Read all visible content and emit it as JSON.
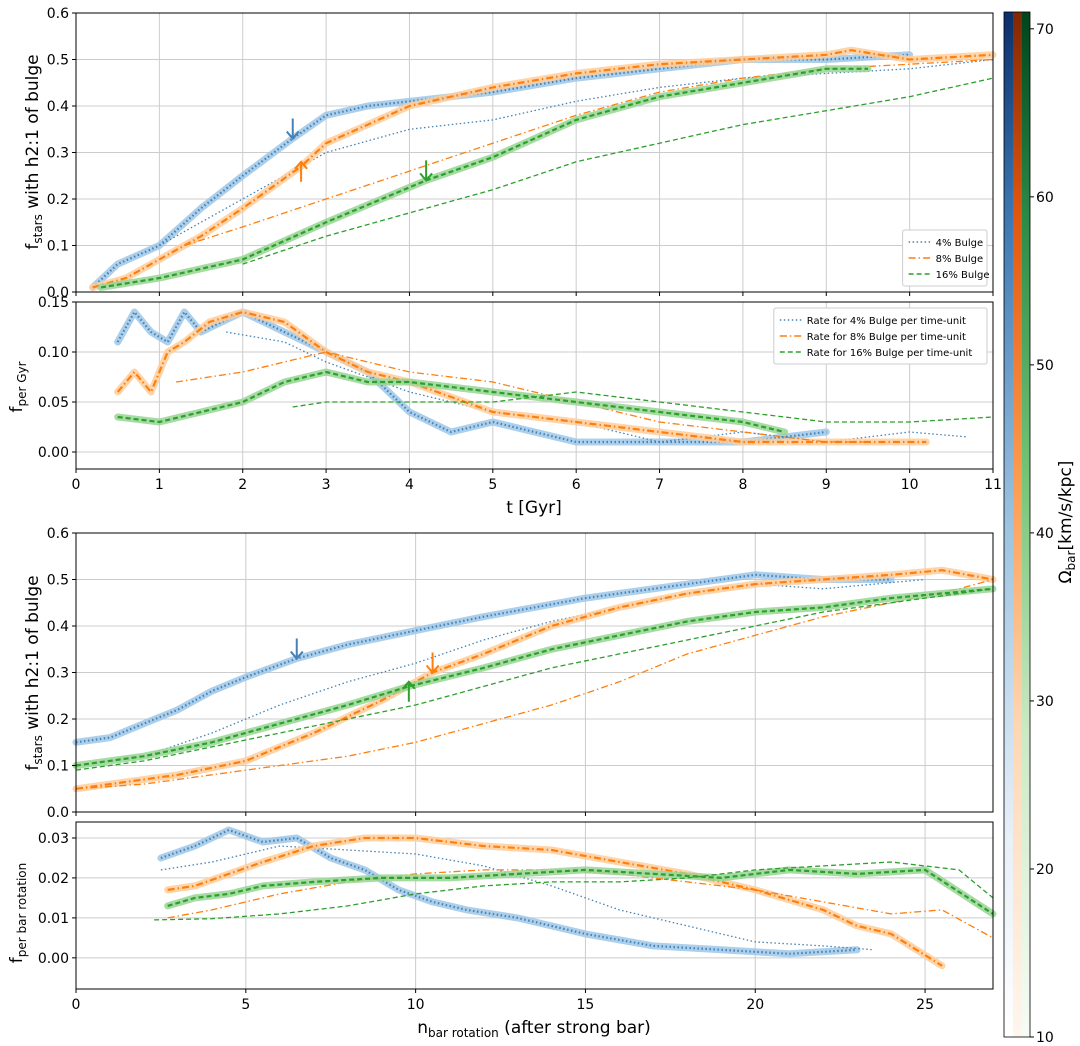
{
  "colors": {
    "blue": "#4682b4",
    "orange": "#ff7f0e",
    "green": "#2ca02c",
    "grid": "#cccccc",
    "axis": "#000000"
  },
  "chart_data": [
    {
      "type": "line",
      "panel": "fraction-vs-time",
      "ylabel_main": "f",
      "ylabel_sub": "stars",
      "ylabel_rest": " with h2:1 of bulge",
      "xlim": [
        0,
        11
      ],
      "ylim": [
        0.0,
        0.6
      ],
      "xticks": [
        0,
        1,
        2,
        3,
        4,
        5,
        6,
        7,
        8,
        9,
        10,
        11
      ],
      "yticks": [
        "0.0",
        "0.1",
        "0.2",
        "0.3",
        "0.4",
        "0.5",
        "0.6"
      ],
      "legend": [
        "4% Bulge",
        "8% Bulge",
        "16% Bulge"
      ],
      "legend_position": "lower-right",
      "series": [
        {
          "name": "4% Bulge (run A)",
          "color": "blue",
          "dash": "dot",
          "highlight": true,
          "x": [
            0.2,
            0.5,
            1.0,
            1.5,
            2.0,
            2.6,
            3.0,
            3.5,
            4.0,
            4.5,
            5.0,
            6.0,
            7.0,
            8.0,
            9.0,
            10.0
          ],
          "y": [
            0.01,
            0.06,
            0.1,
            0.18,
            0.25,
            0.33,
            0.38,
            0.4,
            0.41,
            0.42,
            0.43,
            0.46,
            0.48,
            0.5,
            0.5,
            0.51
          ]
        },
        {
          "name": "4% Bulge (run B)",
          "color": "blue",
          "dash": "dot",
          "highlight": false,
          "x": [
            1.0,
            2.0,
            2.6,
            3.0,
            4.0,
            5.0,
            6.0,
            7.0,
            8.0,
            9.0,
            10.0,
            11.0
          ],
          "y": [
            0.1,
            0.2,
            0.26,
            0.3,
            0.35,
            0.37,
            0.41,
            0.44,
            0.46,
            0.47,
            0.48,
            0.5
          ]
        },
        {
          "name": "8% Bulge (run A)",
          "color": "orange",
          "dash": "dashdot",
          "highlight": true,
          "x": [
            0.2,
            0.6,
            1.0,
            1.5,
            2.0,
            2.7,
            3.0,
            4.0,
            5.0,
            6.0,
            7.0,
            8.0,
            9.0,
            9.3,
            10.0,
            11.0
          ],
          "y": [
            0.01,
            0.03,
            0.07,
            0.12,
            0.18,
            0.27,
            0.32,
            0.4,
            0.44,
            0.47,
            0.49,
            0.5,
            0.51,
            0.52,
            0.5,
            0.51
          ]
        },
        {
          "name": "8% Bulge (run B)",
          "color": "orange",
          "dash": "dashdot",
          "highlight": false,
          "x": [
            1.3,
            2.0,
            3.0,
            4.0,
            5.0,
            6.0,
            7.0,
            8.0,
            9.0,
            10.0,
            11.0
          ],
          "y": [
            0.1,
            0.14,
            0.2,
            0.26,
            0.32,
            0.38,
            0.43,
            0.46,
            0.48,
            0.49,
            0.5
          ]
        },
        {
          "name": "16% Bulge (run A)",
          "color": "green",
          "dash": "dash",
          "highlight": true,
          "x": [
            0.3,
            1.0,
            2.0,
            3.0,
            4.2,
            5.0,
            6.0,
            7.0,
            8.0,
            9.0,
            9.5
          ],
          "y": [
            0.01,
            0.03,
            0.07,
            0.15,
            0.24,
            0.29,
            0.37,
            0.42,
            0.45,
            0.48,
            0.48
          ]
        },
        {
          "name": "16% Bulge (run B)",
          "color": "green",
          "dash": "dash",
          "highlight": false,
          "x": [
            2.0,
            3.0,
            4.0,
            5.0,
            6.0,
            7.0,
            8.0,
            9.0,
            10.0,
            11.0
          ],
          "y": [
            0.06,
            0.12,
            0.17,
            0.22,
            0.28,
            0.32,
            0.36,
            0.39,
            0.42,
            0.46
          ]
        }
      ],
      "annotations": [
        {
          "color": "blue",
          "direction": "down",
          "x": 2.6,
          "y": 0.33
        },
        {
          "color": "orange",
          "direction": "up",
          "x": 2.7,
          "y": 0.28
        },
        {
          "color": "green",
          "direction": "down",
          "x": 4.2,
          "y": 0.24
        }
      ]
    },
    {
      "type": "line",
      "panel": "rate-vs-time",
      "ylabel_main": "f",
      "ylabel_sub": "per Gyr",
      "xlabel": "t [Gyr]",
      "xlim": [
        0,
        11
      ],
      "ylim": [
        -0.017,
        0.15
      ],
      "xticks": [
        0,
        1,
        2,
        3,
        4,
        5,
        6,
        7,
        8,
        9,
        10,
        11
      ],
      "yticks": [
        "0.00",
        "0.05",
        "0.10",
        "0.15"
      ],
      "legend": [
        "Rate for 4% Bulge per time-unit",
        "Rate for 8% Bulge per time-unit",
        "Rate for 16% Bulge per time-unit"
      ],
      "legend_position": "upper-right",
      "series": [
        {
          "name": "4% rate A",
          "color": "blue",
          "dash": "dot",
          "highlight": true,
          "x": [
            0.5,
            0.7,
            0.9,
            1.1,
            1.3,
            1.5,
            2.0,
            2.5,
            3.0,
            3.5,
            4.0,
            4.5,
            5.0,
            6.0,
            7.0,
            8.0,
            9.0
          ],
          "y": [
            0.11,
            0.14,
            0.12,
            0.11,
            0.14,
            0.12,
            0.14,
            0.12,
            0.1,
            0.08,
            0.04,
            0.02,
            0.03,
            0.01,
            0.01,
            0.01,
            0.02
          ]
        },
        {
          "name": "4% rate B",
          "color": "blue",
          "dash": "dot",
          "highlight": false,
          "x": [
            1.8,
            2.5,
            3.0,
            4.0,
            5.0,
            6.0,
            7.0,
            8.0,
            9.0,
            10.0,
            10.7
          ],
          "y": [
            0.12,
            0.11,
            0.09,
            0.06,
            0.04,
            0.03,
            0.01,
            0.02,
            0.01,
            0.02,
            0.015
          ]
        },
        {
          "name": "8% rate A",
          "color": "orange",
          "dash": "dashdot",
          "highlight": true,
          "x": [
            0.5,
            0.7,
            0.9,
            1.1,
            1.3,
            1.6,
            2.0,
            2.5,
            3.0,
            3.5,
            4.0,
            5.0,
            6.0,
            7.0,
            8.0,
            9.0,
            10.2
          ],
          "y": [
            0.06,
            0.08,
            0.06,
            0.1,
            0.11,
            0.13,
            0.14,
            0.13,
            0.1,
            0.08,
            0.07,
            0.04,
            0.03,
            0.02,
            0.01,
            0.01,
            0.01
          ]
        },
        {
          "name": "8% rate B",
          "color": "orange",
          "dash": "dashdot",
          "highlight": false,
          "x": [
            1.2,
            2.0,
            2.5,
            3.0,
            4.0,
            5.0,
            6.0,
            7.0,
            8.0,
            9.0,
            9.5
          ],
          "y": [
            0.07,
            0.08,
            0.09,
            0.1,
            0.08,
            0.07,
            0.05,
            0.03,
            0.02,
            0.01,
            0.01
          ]
        },
        {
          "name": "16% rate A",
          "color": "green",
          "dash": "dash",
          "highlight": true,
          "x": [
            0.5,
            1.0,
            1.5,
            2.0,
            2.5,
            3.0,
            3.5,
            4.0,
            5.0,
            6.0,
            7.0,
            8.0,
            8.5
          ],
          "y": [
            0.035,
            0.03,
            0.04,
            0.05,
            0.07,
            0.08,
            0.07,
            0.07,
            0.06,
            0.05,
            0.04,
            0.03,
            0.02
          ]
        },
        {
          "name": "16% rate B",
          "color": "green",
          "dash": "dash",
          "highlight": false,
          "x": [
            2.6,
            3.0,
            4.0,
            5.0,
            6.0,
            7.0,
            8.0,
            9.0,
            10.0,
            11.0
          ],
          "y": [
            0.045,
            0.05,
            0.05,
            0.05,
            0.06,
            0.05,
            0.04,
            0.03,
            0.03,
            0.035
          ]
        }
      ]
    },
    {
      "type": "line",
      "panel": "fraction-vs-rotations",
      "ylabel_main": "f",
      "ylabel_sub": "stars",
      "ylabel_rest": " with h2:1 of bulge",
      "xlim": [
        0,
        27
      ],
      "ylim": [
        0.0,
        0.6
      ],
      "xticks": [
        0,
        5,
        10,
        15,
        20,
        25
      ],
      "yticks": [
        "0.0",
        "0.1",
        "0.2",
        "0.3",
        "0.4",
        "0.5",
        "0.6"
      ],
      "series": [
        {
          "name": "4% A",
          "color": "blue",
          "dash": "dot",
          "highlight": true,
          "x": [
            0,
            1,
            2,
            3,
            4,
            5,
            6.5,
            8,
            10,
            12,
            15,
            18,
            20,
            22,
            24
          ],
          "y": [
            0.15,
            0.16,
            0.19,
            0.22,
            0.26,
            0.29,
            0.33,
            0.36,
            0.39,
            0.42,
            0.46,
            0.49,
            0.51,
            0.5,
            0.5
          ]
        },
        {
          "name": "4% B",
          "color": "blue",
          "dash": "dot",
          "highlight": false,
          "x": [
            0,
            2,
            4,
            6,
            8,
            10,
            12,
            14,
            16,
            18,
            20,
            22,
            25
          ],
          "y": [
            0.1,
            0.12,
            0.17,
            0.23,
            0.28,
            0.32,
            0.37,
            0.41,
            0.44,
            0.47,
            0.49,
            0.48,
            0.5
          ]
        },
        {
          "name": "8% A",
          "color": "orange",
          "dash": "dashdot",
          "highlight": true,
          "x": [
            0,
            1,
            3,
            5,
            7,
            9,
            10.5,
            12,
            14,
            16,
            18,
            20,
            22,
            24,
            25.5,
            27
          ],
          "y": [
            0.05,
            0.06,
            0.08,
            0.11,
            0.17,
            0.24,
            0.3,
            0.34,
            0.4,
            0.44,
            0.47,
            0.49,
            0.5,
            0.51,
            0.52,
            0.5
          ]
        },
        {
          "name": "8% B",
          "color": "orange",
          "dash": "dashdot",
          "highlight": false,
          "x": [
            0,
            2,
            4,
            6,
            8,
            10,
            12,
            14,
            16,
            18,
            20,
            22,
            24,
            26,
            27
          ],
          "y": [
            0.05,
            0.06,
            0.08,
            0.1,
            0.12,
            0.15,
            0.19,
            0.23,
            0.28,
            0.34,
            0.38,
            0.42,
            0.45,
            0.48,
            0.5
          ]
        },
        {
          "name": "16% A",
          "color": "green",
          "dash": "dash",
          "highlight": true,
          "x": [
            0,
            2,
            4,
            6,
            8,
            9.8,
            12,
            14,
            16,
            18,
            20,
            22,
            24,
            27
          ],
          "y": [
            0.1,
            0.12,
            0.15,
            0.19,
            0.23,
            0.27,
            0.31,
            0.35,
            0.38,
            0.41,
            0.43,
            0.44,
            0.46,
            0.48
          ]
        },
        {
          "name": "16% B",
          "color": "green",
          "dash": "dash",
          "highlight": false,
          "x": [
            0,
            2,
            4,
            6,
            8,
            10,
            12,
            14,
            16,
            18,
            20,
            22,
            24,
            27
          ],
          "y": [
            0.09,
            0.11,
            0.14,
            0.17,
            0.2,
            0.23,
            0.27,
            0.31,
            0.34,
            0.37,
            0.4,
            0.43,
            0.45,
            0.48
          ]
        }
      ],
      "annotations": [
        {
          "color": "blue",
          "direction": "down",
          "x": 6.5,
          "y": 0.33
        },
        {
          "color": "orange",
          "direction": "down",
          "x": 10.5,
          "y": 0.3
        },
        {
          "color": "green",
          "direction": "up",
          "x": 9.8,
          "y": 0.28
        }
      ]
    },
    {
      "type": "line",
      "panel": "rate-vs-rotations",
      "ylabel_main": "f",
      "ylabel_sub": "per bar rotation",
      "xlabel_main": "n",
      "xlabel_sub": "bar rotation",
      "xlabel_rest": " (after strong bar)",
      "xlim": [
        0,
        27
      ],
      "ylim": [
        -0.0078,
        0.034
      ],
      "xticks": [
        0,
        5,
        10,
        15,
        20,
        25
      ],
      "yticks": [
        "0.00",
        "0.01",
        "0.02",
        "0.03"
      ],
      "series": [
        {
          "name": "4% rate A",
          "color": "blue",
          "dash": "dot",
          "highlight": true,
          "x": [
            2.5,
            3.5,
            4.5,
            5.5,
            6.5,
            7.5,
            8.5,
            9.5,
            10.5,
            11.5,
            13,
            15,
            17,
            19,
            21,
            23
          ],
          "y": [
            0.025,
            0.028,
            0.032,
            0.029,
            0.03,
            0.025,
            0.022,
            0.017,
            0.014,
            0.012,
            0.01,
            0.006,
            0.003,
            0.002,
            0.001,
            0.002
          ]
        },
        {
          "name": "4% rate B",
          "color": "blue",
          "dash": "dot",
          "highlight": false,
          "x": [
            2.5,
            4,
            6,
            8,
            10,
            12,
            14,
            16,
            18,
            20,
            22,
            23.5
          ],
          "y": [
            0.022,
            0.024,
            0.028,
            0.027,
            0.026,
            0.023,
            0.018,
            0.012,
            0.008,
            0.004,
            0.003,
            0.002
          ]
        },
        {
          "name": "8% rate A",
          "color": "orange",
          "dash": "dashdot",
          "highlight": true,
          "x": [
            2.7,
            3.5,
            4.5,
            5.5,
            7,
            8.5,
            10,
            12,
            14,
            16,
            18,
            20,
            22,
            23,
            24,
            25.5
          ],
          "y": [
            0.017,
            0.018,
            0.021,
            0.024,
            0.028,
            0.03,
            0.03,
            0.028,
            0.027,
            0.024,
            0.021,
            0.017,
            0.012,
            0.008,
            0.006,
            -0.002
          ]
        },
        {
          "name": "8% rate B",
          "color": "orange",
          "dash": "dashdot",
          "highlight": false,
          "x": [
            2.7,
            4,
            6,
            8,
            10,
            12,
            14,
            16,
            18,
            20,
            22,
            24,
            25.5,
            27
          ],
          "y": [
            0.01,
            0.012,
            0.016,
            0.019,
            0.021,
            0.022,
            0.022,
            0.021,
            0.019,
            0.017,
            0.014,
            0.011,
            0.012,
            0.005
          ]
        },
        {
          "name": "16% rate A",
          "color": "green",
          "dash": "dash",
          "highlight": true,
          "x": [
            2.7,
            3.5,
            4.5,
            5.5,
            7,
            9,
            11,
            13,
            15,
            17,
            19,
            21,
            23,
            25,
            27
          ],
          "y": [
            0.013,
            0.015,
            0.016,
            0.018,
            0.019,
            0.02,
            0.02,
            0.021,
            0.022,
            0.021,
            0.02,
            0.022,
            0.021,
            0.022,
            0.011
          ]
        },
        {
          "name": "16% rate B",
          "color": "green",
          "dash": "dash",
          "highlight": false,
          "x": [
            2.3,
            4,
            6,
            8,
            10,
            12,
            14,
            16,
            18,
            20,
            22,
            24,
            26,
            27
          ],
          "y": [
            0.0095,
            0.0098,
            0.011,
            0.013,
            0.016,
            0.018,
            0.019,
            0.019,
            0.02,
            0.022,
            0.023,
            0.024,
            0.022,
            0.015
          ]
        }
      ]
    }
  ],
  "colorbar": {
    "label_main": "Ω",
    "label_sub": "bar",
    "label_rest": "[km/s/kpc]",
    "ticks": [
      "10",
      "20",
      "30",
      "40",
      "50",
      "60",
      "70"
    ],
    "range": [
      10,
      71
    ]
  }
}
